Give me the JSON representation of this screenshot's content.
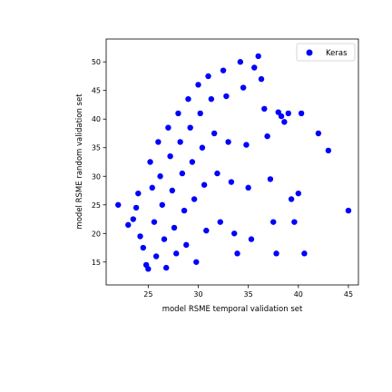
{
  "chart_data": {
    "type": "scatter",
    "title": "",
    "xlabel": "model RSME temporal validation set",
    "ylabel": "model RSME random validation set",
    "xlim": [
      20.8,
      46.0
    ],
    "ylim": [
      11.0,
      54.0
    ],
    "xticks": [
      25,
      30,
      35,
      40,
      45
    ],
    "yticks": [
      15,
      20,
      25,
      30,
      35,
      40,
      45,
      50
    ],
    "grid": false,
    "legend": {
      "position": "upper-right",
      "entries": [
        "Keras"
      ]
    },
    "series": [
      {
        "name": "Keras",
        "color": "#0000ff",
        "marker": "circle",
        "points": [
          [
            22.0,
            25.0
          ],
          [
            23.0,
            21.5
          ],
          [
            23.5,
            22.5
          ],
          [
            23.8,
            24.5
          ],
          [
            24.0,
            27.0
          ],
          [
            24.2,
            19.5
          ],
          [
            24.5,
            17.5
          ],
          [
            24.8,
            14.5
          ],
          [
            25.0,
            13.8
          ],
          [
            25.2,
            32.5
          ],
          [
            25.4,
            28.0
          ],
          [
            25.6,
            22.0
          ],
          [
            25.8,
            16.0
          ],
          [
            26.0,
            36.0
          ],
          [
            26.2,
            30.0
          ],
          [
            26.4,
            25.0
          ],
          [
            26.6,
            19.0
          ],
          [
            26.8,
            14.0
          ],
          [
            27.0,
            38.5
          ],
          [
            27.2,
            33.5
          ],
          [
            27.4,
            27.5
          ],
          [
            27.6,
            21.0
          ],
          [
            27.8,
            16.5
          ],
          [
            28.0,
            41.0
          ],
          [
            28.2,
            36.0
          ],
          [
            28.4,
            30.5
          ],
          [
            28.6,
            24.0
          ],
          [
            28.8,
            18.0
          ],
          [
            29.0,
            43.5
          ],
          [
            29.2,
            38.5
          ],
          [
            29.4,
            32.5
          ],
          [
            29.6,
            26.0
          ],
          [
            29.8,
            15.0
          ],
          [
            30.0,
            46.0
          ],
          [
            30.2,
            41.0
          ],
          [
            30.4,
            35.0
          ],
          [
            30.6,
            28.5
          ],
          [
            30.8,
            20.5
          ],
          [
            31.0,
            47.5
          ],
          [
            31.3,
            43.5
          ],
          [
            31.6,
            37.5
          ],
          [
            31.9,
            30.5
          ],
          [
            32.2,
            22.0
          ],
          [
            32.5,
            48.5
          ],
          [
            32.8,
            44.0
          ],
          [
            33.0,
            36.0
          ],
          [
            33.3,
            29.0
          ],
          [
            33.6,
            20.0
          ],
          [
            33.9,
            16.5
          ],
          [
            34.2,
            50.0
          ],
          [
            34.5,
            45.5
          ],
          [
            34.8,
            35.5
          ],
          [
            35.0,
            28.0
          ],
          [
            35.3,
            19.0
          ],
          [
            35.6,
            49.0
          ],
          [
            36.0,
            51.0
          ],
          [
            36.3,
            47.0
          ],
          [
            36.6,
            41.8
          ],
          [
            36.9,
            37.0
          ],
          [
            37.2,
            29.5
          ],
          [
            37.5,
            22.0
          ],
          [
            37.8,
            16.5
          ],
          [
            38.0,
            41.2
          ],
          [
            38.3,
            40.5
          ],
          [
            38.6,
            39.5
          ],
          [
            39.0,
            41.0
          ],
          [
            39.3,
            26.0
          ],
          [
            39.6,
            22.0
          ],
          [
            40.0,
            27.0
          ],
          [
            40.3,
            41.0
          ],
          [
            40.6,
            16.5
          ],
          [
            42.0,
            37.5
          ],
          [
            43.0,
            34.5
          ],
          [
            45.0,
            24.0
          ]
        ]
      }
    ]
  }
}
